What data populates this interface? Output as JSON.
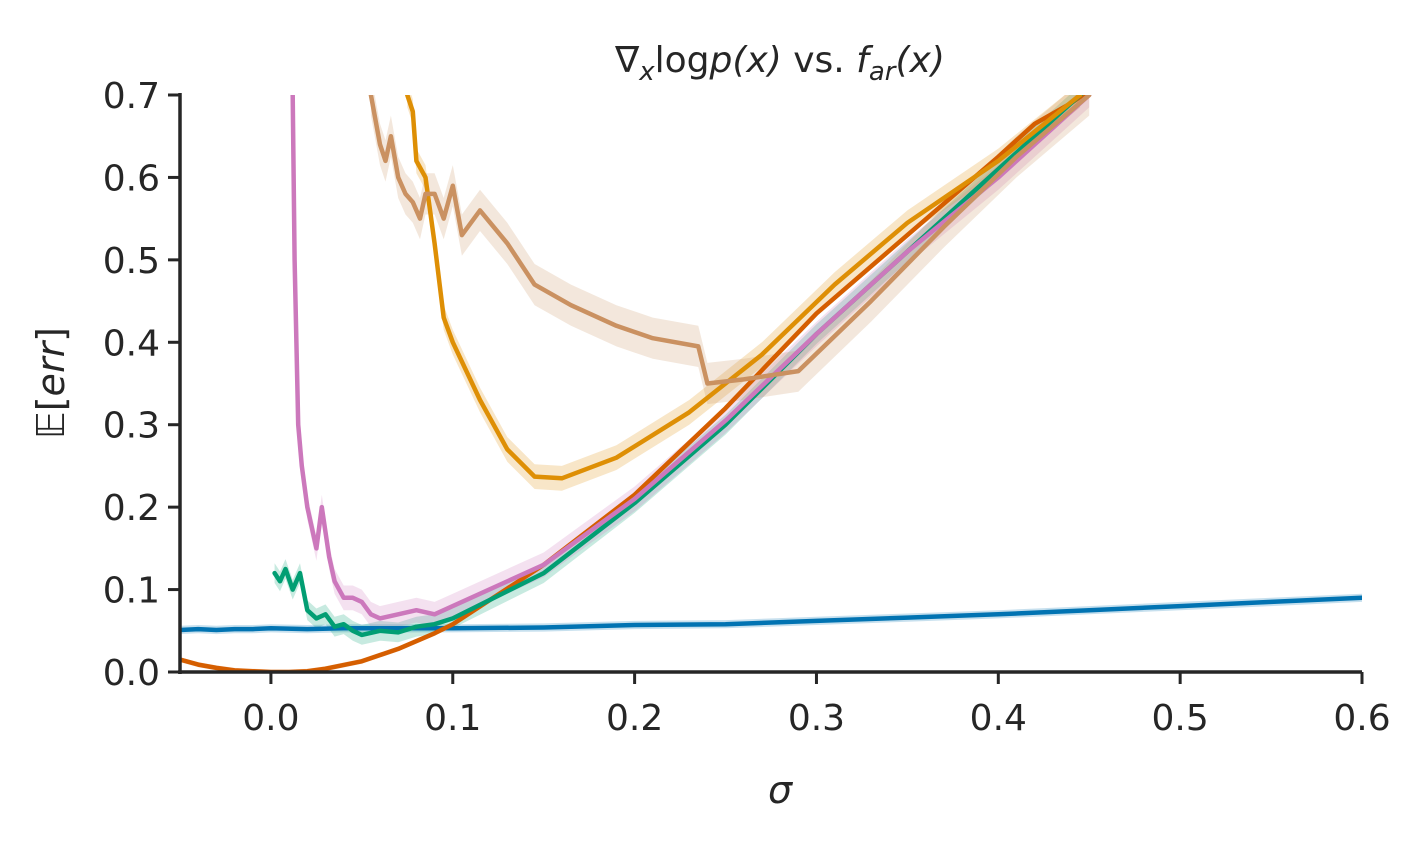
{
  "chart_data": {
    "type": "line",
    "title": "∇ₓlogp(x) vs. fₐᵣ(x)",
    "title_parts": {
      "nabla": "∇",
      "nabla_sub": "x",
      "log": "log",
      "p": "p",
      "arg1": "(x)",
      "vs": " vs. ",
      "f": "f",
      "f_sub": "ar",
      "arg2": "(x)"
    },
    "xlabel": "σ",
    "ylabel": "𝔼[err]",
    "ylabel_parts": {
      "E": "𝔼",
      "open": "[",
      "body": "err",
      "close": "]"
    },
    "xlim": [
      -0.05,
      0.6
    ],
    "ylim": [
      0.0,
      0.7
    ],
    "x_ticks": [
      "0.0",
      "0.1",
      "0.2",
      "0.3",
      "0.4",
      "0.5",
      "0.6"
    ],
    "x_tick_values": [
      0.0,
      0.1,
      0.2,
      0.3,
      0.4,
      0.5,
      0.6
    ],
    "y_ticks": [
      "0.0",
      "0.1",
      "0.2",
      "0.3",
      "0.4",
      "0.5",
      "0.6",
      "0.7"
    ],
    "y_tick_values": [
      0.0,
      0.1,
      0.2,
      0.3,
      0.4,
      0.5,
      0.6,
      0.7
    ],
    "grid": false,
    "series": [
      {
        "name": "blue",
        "color": "#0173b2",
        "band_width": 0.005,
        "x": [
          -0.05,
          -0.04,
          -0.03,
          -0.02,
          -0.01,
          0.0,
          0.02,
          0.04,
          0.06,
          0.08,
          0.1,
          0.15,
          0.2,
          0.25,
          0.3,
          0.35,
          0.4,
          0.45,
          0.5,
          0.55,
          0.6
        ],
        "y": [
          0.051,
          0.052,
          0.051,
          0.052,
          0.052,
          0.053,
          0.052,
          0.053,
          0.053,
          0.053,
          0.053,
          0.054,
          0.057,
          0.058,
          0.062,
          0.066,
          0.07,
          0.075,
          0.08,
          0.085,
          0.09
        ]
      },
      {
        "name": "red-orange",
        "color": "#d55e00",
        "band_width": 0.003,
        "x": [
          -0.05,
          -0.04,
          -0.03,
          -0.02,
          -0.01,
          0.0,
          0.01,
          0.02,
          0.03,
          0.05,
          0.07,
          0.09,
          0.1,
          0.15,
          0.2,
          0.25,
          0.3,
          0.35,
          0.4,
          0.42,
          0.44,
          0.46
        ],
        "y": [
          0.015,
          0.009,
          0.005,
          0.002,
          0.001,
          0.0,
          0.0,
          0.001,
          0.004,
          0.013,
          0.028,
          0.047,
          0.058,
          0.13,
          0.215,
          0.32,
          0.435,
          0.53,
          0.625,
          0.665,
          0.69,
          0.72
        ]
      },
      {
        "name": "green",
        "color": "#029e73",
        "band_width": 0.012,
        "x": [
          0.002,
          0.005,
          0.008,
          0.012,
          0.016,
          0.02,
          0.025,
          0.03,
          0.035,
          0.04,
          0.045,
          0.05,
          0.06,
          0.07,
          0.08,
          0.09,
          0.1,
          0.15,
          0.2,
          0.25,
          0.3,
          0.35,
          0.4,
          0.45
        ],
        "y": [
          0.12,
          0.11,
          0.125,
          0.1,
          0.12,
          0.075,
          0.065,
          0.07,
          0.055,
          0.058,
          0.05,
          0.045,
          0.05,
          0.048,
          0.055,
          0.058,
          0.065,
          0.12,
          0.205,
          0.3,
          0.41,
          0.51,
          0.61,
          0.71
        ]
      },
      {
        "name": "pink",
        "color": "#cc78bc",
        "band_width": 0.015,
        "x": [
          0.012,
          0.013,
          0.015,
          0.017,
          0.02,
          0.025,
          0.028,
          0.032,
          0.035,
          0.04,
          0.045,
          0.05,
          0.055,
          0.06,
          0.07,
          0.08,
          0.09,
          0.1,
          0.15,
          0.2,
          0.25,
          0.3,
          0.35,
          0.4,
          0.45
        ],
        "y": [
          0.7,
          0.5,
          0.3,
          0.25,
          0.2,
          0.15,
          0.2,
          0.14,
          0.11,
          0.09,
          0.09,
          0.085,
          0.07,
          0.065,
          0.07,
          0.075,
          0.07,
          0.08,
          0.13,
          0.21,
          0.305,
          0.41,
          0.51,
          0.6,
          0.7
        ]
      },
      {
        "name": "orange",
        "color": "#de8f05",
        "band_width": 0.015,
        "x": [
          0.075,
          0.078,
          0.08,
          0.085,
          0.09,
          0.095,
          0.1,
          0.115,
          0.13,
          0.145,
          0.16,
          0.19,
          0.23,
          0.27,
          0.31,
          0.35,
          0.4,
          0.445
        ],
        "y": [
          0.7,
          0.68,
          0.62,
          0.6,
          0.52,
          0.43,
          0.4,
          0.33,
          0.27,
          0.237,
          0.235,
          0.26,
          0.315,
          0.385,
          0.47,
          0.545,
          0.62,
          0.7
        ]
      },
      {
        "name": "brown",
        "color": "#ca9161",
        "band_width": 0.025,
        "x": [
          0.055,
          0.06,
          0.063,
          0.066,
          0.07,
          0.074,
          0.078,
          0.082,
          0.085,
          0.09,
          0.095,
          0.1,
          0.105,
          0.115,
          0.13,
          0.145,
          0.165,
          0.19,
          0.21,
          0.235,
          0.24,
          0.26,
          0.29,
          0.33,
          0.37,
          0.41,
          0.45
        ],
        "y": [
          0.7,
          0.64,
          0.62,
          0.65,
          0.6,
          0.58,
          0.57,
          0.55,
          0.58,
          0.58,
          0.55,
          0.59,
          0.53,
          0.56,
          0.52,
          0.47,
          0.445,
          0.42,
          0.405,
          0.395,
          0.35,
          0.355,
          0.365,
          0.45,
          0.54,
          0.625,
          0.7
        ]
      }
    ]
  }
}
